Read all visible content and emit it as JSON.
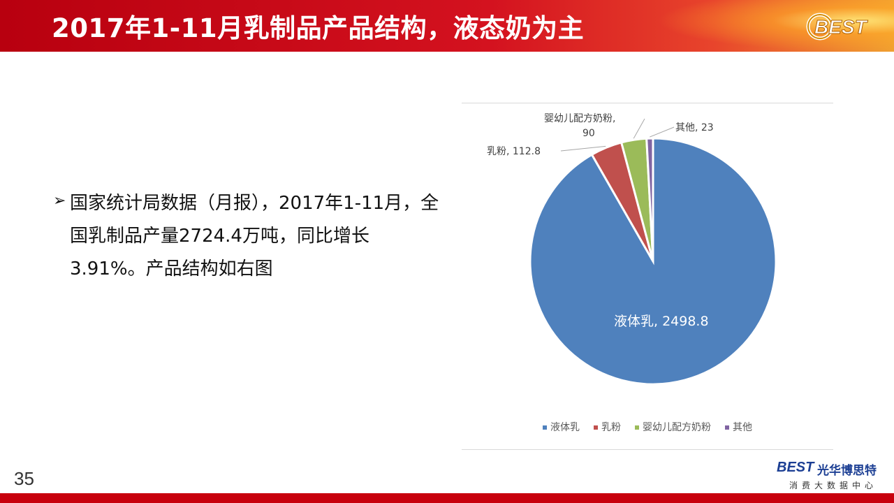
{
  "header": {
    "title": "2017年1-11月乳制品产品结构，液态奶为主",
    "logo_text": "BEST"
  },
  "bullet": {
    "text": "国家统计局数据（月报），2017年1-11月，全国乳制品产量2724.4万吨，同比增长3.91%。产品结构如右图"
  },
  "chart_data": {
    "type": "pie",
    "title": "",
    "slices": [
      {
        "name": "液体乳",
        "value": 2498.8,
        "label": "液体乳, 2498.8",
        "color": "#4f81bd"
      },
      {
        "name": "乳粉",
        "value": 112.8,
        "label": "乳粉, 112.8",
        "color": "#c0504d"
      },
      {
        "name": "婴幼儿配方奶粉",
        "value": 90,
        "label": "婴幼儿配方奶粉,\n90",
        "color": "#9bbb59"
      },
      {
        "name": "其他",
        "value": 23,
        "label": "其他, 23",
        "color": "#8064a2"
      }
    ],
    "legend_position": "bottom"
  },
  "footer": {
    "page_number": "35",
    "brand_mark": "BEST",
    "brand_name": "光华博思特",
    "brand_sub": "消费大数据中心"
  },
  "colors": {
    "header_red": "#c8000d",
    "brand_blue": "#1c3f94"
  }
}
